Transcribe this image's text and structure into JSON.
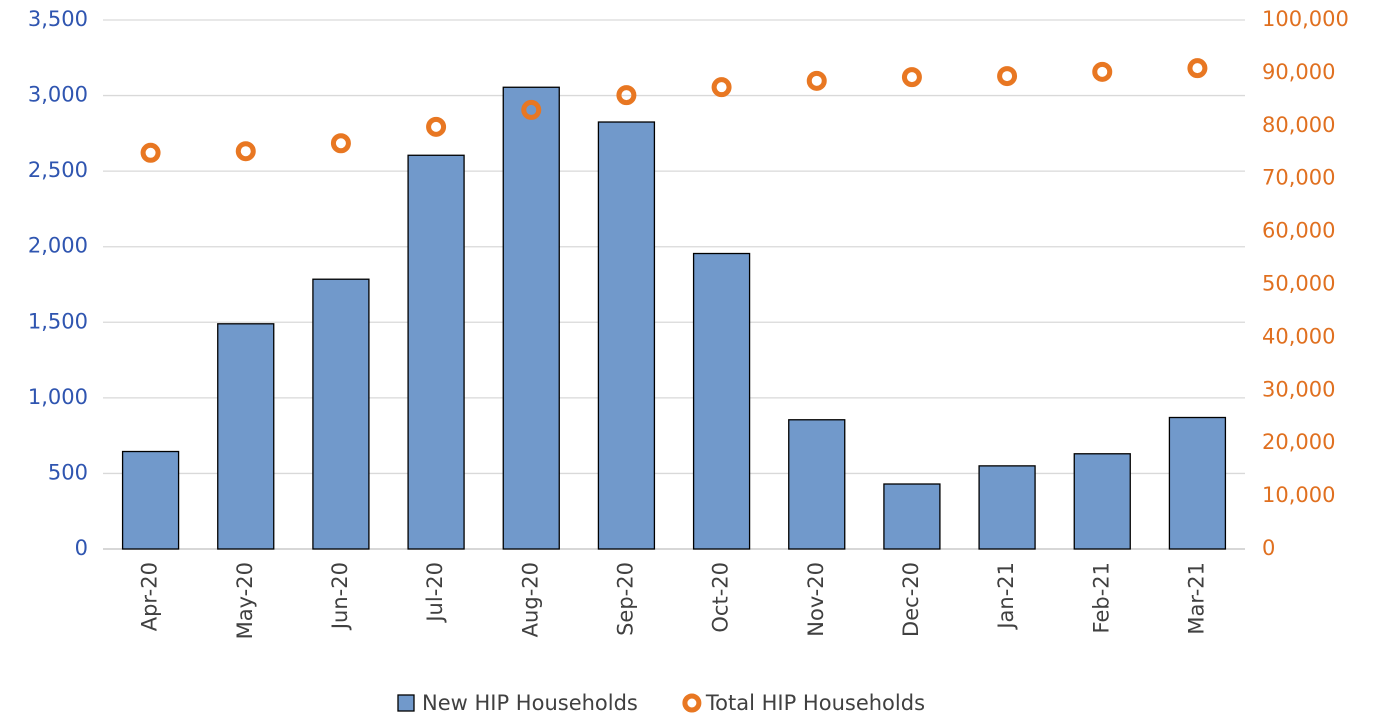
{
  "chart_data": {
    "type": "bar",
    "categories": [
      "Apr-20",
      "May-20",
      "Jun-20",
      "Jul-20",
      "Aug-20",
      "Sep-20",
      "Oct-20",
      "Nov-20",
      "Dec-20",
      "Jan-21",
      "Feb-21",
      "Mar-21"
    ],
    "series": [
      {
        "name": "New HIP Households",
        "type": "bar",
        "axis": "y",
        "color": "#7199cb",
        "values": [
          645,
          1490,
          1785,
          2605,
          3055,
          2825,
          1955,
          855,
          430,
          550,
          630,
          870
        ]
      },
      {
        "name": "Total HIP Households",
        "type": "scatter",
        "axis": "y2",
        "color": "#e87722",
        "values": [
          74900,
          75200,
          76700,
          79800,
          83000,
          85800,
          87300,
          88500,
          89200,
          89400,
          90200,
          90900
        ]
      }
    ],
    "ylim": [
      0,
      3500
    ],
    "yticks": [
      0,
      500,
      {
        "value": 1000,
        "label": "1,000"
      },
      {
        "value": 1500,
        "label": "1,500"
      },
      {
        "value": 2000,
        "label": "2,000"
      },
      {
        "value": 2500,
        "label": "2,500"
      },
      {
        "value": 3000,
        "label": "3,000"
      },
      {
        "value": 3500,
        "label": "3,500"
      }
    ],
    "y2lim": [
      0,
      100000
    ],
    "y2ticks": [
      0,
      {
        "value": 10000,
        "label": "10,000"
      },
      {
        "value": 20000,
        "label": "20,000"
      },
      {
        "value": 30000,
        "label": "30,000"
      },
      {
        "value": 40000,
        "label": "40,000"
      },
      {
        "value": 50000,
        "label": "50,000"
      },
      {
        "value": 60000,
        "label": "60,000"
      },
      {
        "value": 70000,
        "label": "70,000"
      },
      {
        "value": 80000,
        "label": "80,000"
      },
      {
        "value": 90000,
        "label": "90,000"
      },
      {
        "value": 100000,
        "label": "100,000"
      }
    ],
    "grid": true,
    "legend": "bottom"
  }
}
